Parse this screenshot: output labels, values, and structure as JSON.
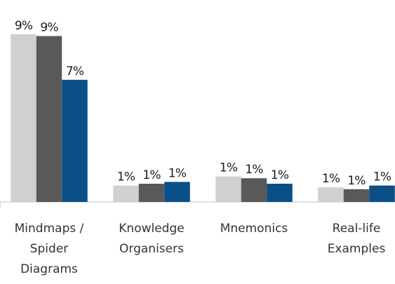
{
  "chart_data": {
    "type": "bar",
    "categories": [
      "Mindmaps / Spider Diagrams",
      "Knowledge Organisers",
      "Mnemonics",
      "Real-life Examples"
    ],
    "series": [
      {
        "color": "#d0d0d0",
        "values": [
          9.2,
          0.9,
          1.4,
          0.8
        ],
        "value_labels": [
          "9%",
          "1%",
          "1%",
          "1%"
        ]
      },
      {
        "color": "#595959",
        "values": [
          9.1,
          1.0,
          1.3,
          0.7
        ],
        "value_labels": [
          "9%",
          "1%",
          "1%",
          "1%"
        ]
      },
      {
        "color": "#0b4f88",
        "values": [
          6.7,
          1.1,
          1.0,
          0.9
        ],
        "value_labels": [
          "7%",
          "1%",
          "1%",
          "1%"
        ]
      }
    ]
  }
}
